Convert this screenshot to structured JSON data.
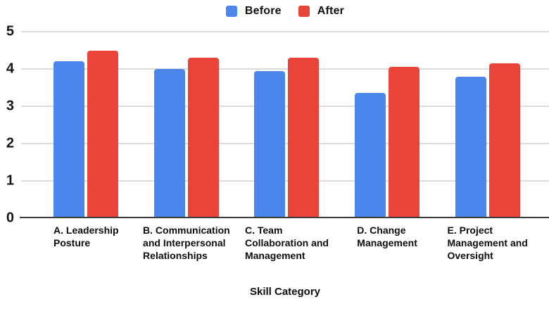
{
  "chart_data": {
    "type": "bar",
    "title": "",
    "xlabel": "Skill Category",
    "ylabel": "",
    "ylim": [
      0,
      5
    ],
    "yticks": [
      0,
      1,
      2,
      3,
      4,
      5
    ],
    "grid": true,
    "legend_position": "top",
    "categories": [
      "A. Leadership Posture",
      "B. Communication and Interpersonal Relationships",
      "C. Team Collaboration and Management",
      "D. Change Management",
      "E. Project Management and Oversight"
    ],
    "category_label_lines": [
      [
        "A. Leadership",
        "Posture"
      ],
      [
        "B. Communication",
        "and Interpersonal",
        "Relationships"
      ],
      [
        "C. Team",
        "Collaboration and",
        "Management"
      ],
      [
        "D. Change",
        "Management"
      ],
      [
        "E. Project",
        "Management and",
        "Oversight"
      ]
    ],
    "series": [
      {
        "name": "Before",
        "color": "#4a86ec",
        "values": [
          4.2,
          4.0,
          3.95,
          3.35,
          3.8
        ]
      },
      {
        "name": "After",
        "color": "#e8443a",
        "values": [
          4.5,
          4.3,
          4.3,
          4.05,
          4.15
        ]
      }
    ]
  },
  "colors": {
    "gridline": "#dcdcdc",
    "axis_line": "#3c3c3c",
    "text": "#111111"
  }
}
